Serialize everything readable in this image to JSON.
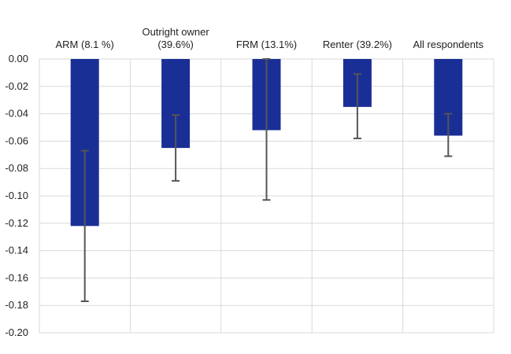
{
  "chart_data": {
    "type": "bar",
    "categories": [
      [
        "ARM (8.1 %)"
      ],
      [
        "Outright owner",
        "(39.6%)"
      ],
      [
        "FRM (13.1%)"
      ],
      [
        "Renter (39.2%)"
      ],
      [
        "All respondents"
      ]
    ],
    "values": [
      -0.122,
      -0.065,
      -0.052,
      -0.035,
      -0.056
    ],
    "error_bars": [
      {
        "low": -0.177,
        "high": -0.067
      },
      {
        "low": -0.089,
        "high": -0.041
      },
      {
        "low": -0.103,
        "high": 0.0
      },
      {
        "low": -0.058,
        "high": -0.011
      },
      {
        "low": -0.071,
        "high": -0.04
      }
    ],
    "y_ticks": [
      "0.00",
      "-0.02",
      "-0.04",
      "-0.06",
      "-0.08",
      "-0.10",
      "-0.12",
      "-0.14",
      "-0.16",
      "-0.18",
      "-0.20"
    ],
    "ylim": [
      -0.2,
      0.0
    ],
    "grid": true,
    "category_axis_position": "top",
    "colors": {
      "bar": "#1a2f96",
      "error_bar": "#555555",
      "grid": "#d9d9d9",
      "axis": "#bfbfbf"
    }
  }
}
